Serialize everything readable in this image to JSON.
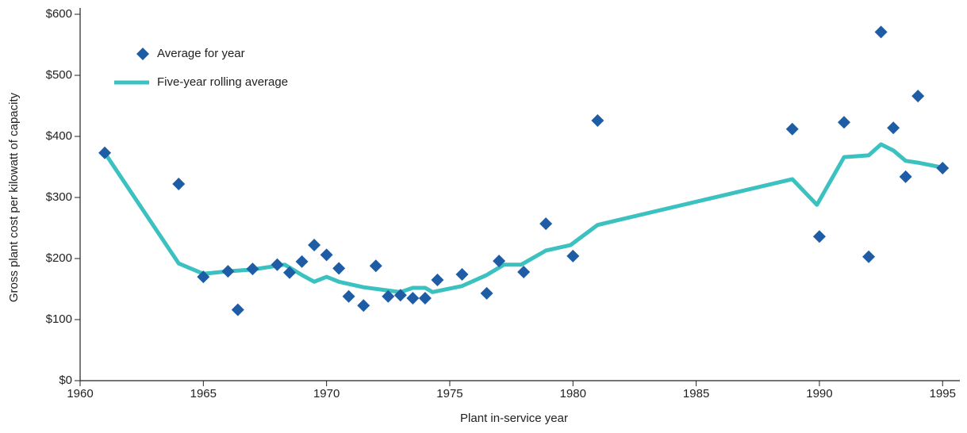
{
  "chart_data": {
    "type": "scatter",
    "x_label": "Plant in-service year",
    "y_label": "Gross plant cost per kilowatt of capacity",
    "xlim": [
      1960,
      1995.7
    ],
    "ylim": [
      0,
      600
    ],
    "xticks": [
      1960,
      1965,
      1970,
      1975,
      1980,
      1985,
      1990,
      1995
    ],
    "yticks": [
      {
        "value": 0,
        "label": "$0"
      },
      {
        "value": 100,
        "label": "$100"
      },
      {
        "value": 200,
        "label": "$200"
      },
      {
        "value": 300,
        "label": "$300"
      },
      {
        "value": 400,
        "label": "$400"
      },
      {
        "value": 500,
        "label": "$500"
      },
      {
        "value": 600,
        "label": "$600"
      }
    ],
    "legend": "upper left",
    "series": [
      {
        "name": "Average for year",
        "type": "scatter",
        "color": "#1f5ca6",
        "x": [
          1961,
          1964,
          1965,
          1966,
          1966.4,
          1967,
          1968,
          1968.5,
          1969,
          1969.5,
          1970,
          1970.5,
          1970.9,
          1971.5,
          1972,
          1972.5,
          1973,
          1973.5,
          1974,
          1974.5,
          1975.5,
          1976.5,
          1977,
          1978,
          1978.9,
          1980,
          1981,
          1988.9,
          1990,
          1991,
          1992,
          1992.5,
          1993,
          1993.5,
          1994,
          1995
        ],
        "values": [
          373,
          322,
          170,
          179,
          116,
          183,
          190,
          177,
          195,
          222,
          206,
          184,
          138,
          123,
          188,
          138,
          140,
          135,
          135,
          165,
          174,
          143,
          196,
          178,
          257,
          204,
          426,
          412,
          236,
          423,
          203,
          571,
          414,
          334,
          466,
          348
        ]
      },
      {
        "name": "Five-year rolling average",
        "type": "line",
        "color": "#3cc1c1",
        "x": [
          1961,
          1964,
          1965,
          1966,
          1967,
          1968.3,
          1969,
          1969.5,
          1970,
          1970.5,
          1971.5,
          1973,
          1973.5,
          1974,
          1974.3,
          1975.5,
          1976.5,
          1977.2,
          1977.9,
          1978.9,
          1979.9,
          1981,
          1988.9,
          1989.9,
          1991,
          1992,
          1992.5,
          1993,
          1993.5,
          1994,
          1995
        ],
        "values": [
          373,
          192,
          175,
          179,
          182,
          190,
          173,
          162,
          170,
          162,
          153,
          145,
          152,
          152,
          145,
          155,
          173,
          190,
          190,
          213,
          222,
          255,
          330,
          288,
          366,
          369,
          387,
          377,
          360,
          357,
          349
        ]
      }
    ]
  }
}
